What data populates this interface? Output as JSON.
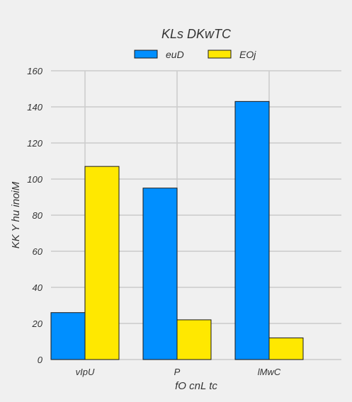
{
  "chart_data": {
    "type": "bar",
    "title": "KLs DKwTC",
    "xlabel": "fO cnL tc",
    "ylabel": "KK Y  hu inoiM",
    "categories": [
      "vIpU",
      "P",
      "lMwC"
    ],
    "series": [
      {
        "name": "euD",
        "color": "#008fff",
        "values": [
          26,
          95,
          143
        ]
      },
      {
        "name": "EOj",
        "color": "#ffe800",
        "values": [
          107,
          22,
          12
        ]
      }
    ],
    "ylim": [
      0,
      160
    ],
    "yticks": [
      0,
      20,
      40,
      60,
      80,
      100,
      120,
      140,
      160
    ],
    "grid": true,
    "legend_position": "top-center"
  }
}
